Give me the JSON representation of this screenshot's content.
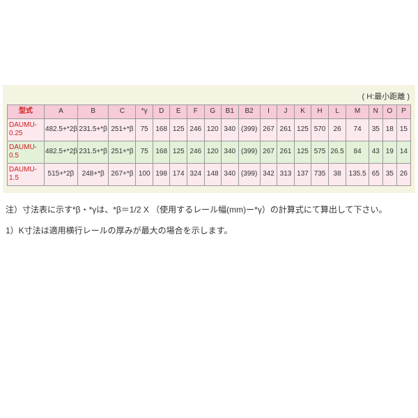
{
  "top_note": "( H:最小距離 )",
  "table": {
    "background_color": "#f5f4e2",
    "header_bg": "#f6cad6",
    "row_odd_bg": "#fbe9ee",
    "row_even_bg": "#e3f1d9",
    "model_color": "#d02020",
    "border_color": "#999999",
    "columns": [
      "型式",
      "A",
      "B",
      "C",
      "*γ",
      "D",
      "E",
      "F",
      "G",
      "B1",
      "B2",
      "I",
      "J",
      "K",
      "H",
      "L",
      "M",
      "N",
      "O",
      "P"
    ],
    "col_widths_pct": [
      9.5,
      8.6,
      8,
      7,
      4.4,
      4.4,
      4.4,
      4.4,
      4.4,
      4.4,
      5.6,
      4.4,
      4.4,
      4.4,
      4.4,
      4.6,
      5.8,
      3.6,
      3.6,
      3.6
    ],
    "rows": [
      {
        "model": "DAUMU-0.25",
        "cells": [
          "482.5+*2β",
          "231.5+*β",
          "251+*β",
          "75",
          "168",
          "125",
          "246",
          "120",
          "340",
          "(399)",
          "267",
          "261",
          "125",
          "570",
          "26",
          "74",
          "35",
          "18",
          "15"
        ]
      },
      {
        "model": "DAUMU-0.5",
        "cells": [
          "482.5+*2β",
          "231.5+*β",
          "251+*β",
          "75",
          "168",
          "125",
          "246",
          "120",
          "340",
          "(399)",
          "267",
          "261",
          "125",
          "575",
          "26.5",
          "84",
          "43",
          "19",
          "14"
        ]
      },
      {
        "model": "DAUMU-1.5",
        "cells": [
          "515+*2β",
          "248+*β",
          "267+*β",
          "100",
          "198",
          "174",
          "324",
          "148",
          "340",
          "(399)",
          "342",
          "313",
          "137",
          "735",
          "38",
          "135.5",
          "65",
          "35",
          "26"
        ]
      }
    ]
  },
  "notes": {
    "line1": "注）寸法表に示す*β・*γは、*β＝1/2 X （使用するレール幅(mm)ー*γ）の計算式にて算出して下さい。",
    "line2": "1）K寸法は適用横行レールの厚みが最大の場合を示します。"
  }
}
